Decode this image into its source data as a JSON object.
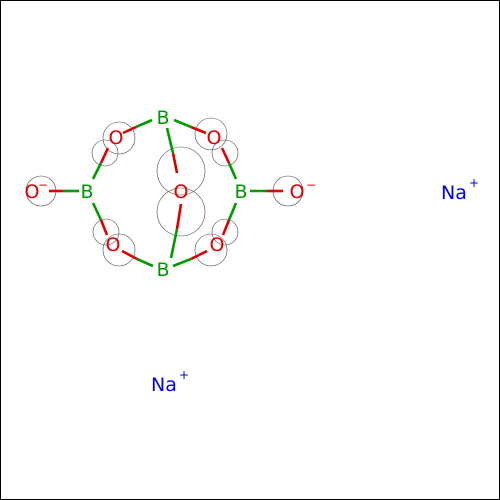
{
  "colors": {
    "boron": "#009900",
    "oxygen": "#dd0000",
    "sodium": "#0000dd",
    "ring_outline": "#000000",
    "bond_boron": "#009900",
    "bond_oxygen": "#dd0000"
  },
  "atoms": {
    "b_top": "B",
    "b_bottom": "B",
    "b_left": "B",
    "b_right": "B",
    "o_bridge": "O",
    "o_upper_left": "O",
    "o_upper_right": "O",
    "o_lower_left": "O",
    "o_lower_right": "O",
    "o_terminal_left": "O",
    "o_terminal_right": "O"
  },
  "charges": {
    "o_terminal_left": "−",
    "o_terminal_right": "−",
    "na_right": "+",
    "na_bottom": "+"
  },
  "ions": {
    "na_right": "Na",
    "na_bottom": "Na"
  }
}
